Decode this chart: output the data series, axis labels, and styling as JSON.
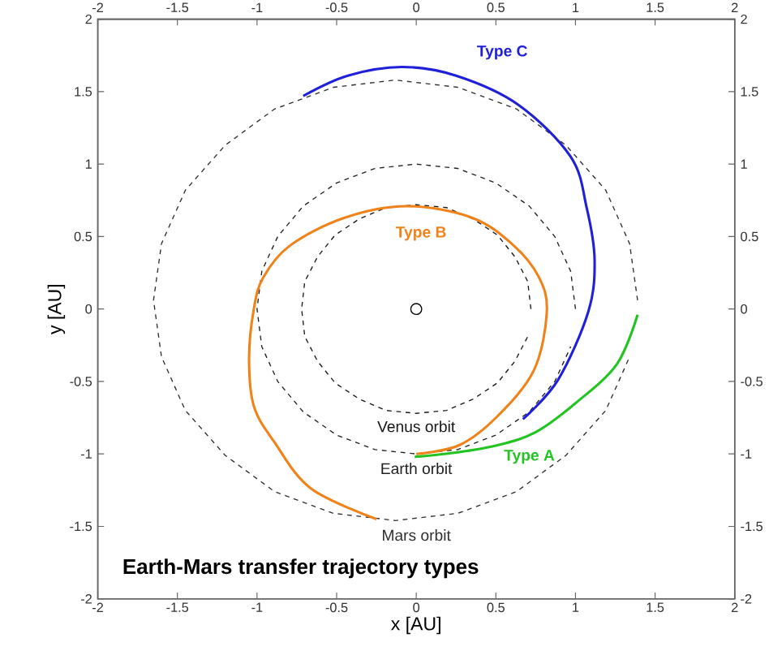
{
  "chart_data": {
    "type": "line",
    "title": "Earth-Mars transfer trajectory types",
    "xlabel": "x [AU]",
    "ylabel": "y [AU]",
    "xlim": [
      -2,
      2
    ],
    "ylim": [
      -2,
      2
    ],
    "xticks": [
      -2,
      -1.5,
      -1,
      -0.5,
      0,
      0.5,
      1,
      1.5,
      2
    ],
    "yticks": [
      -2,
      -1.5,
      -1,
      -0.5,
      0,
      0.5,
      1,
      1.5,
      2
    ],
    "x2lim": [
      -2,
      2
    ],
    "x2ticks": [
      -2,
      -1.5,
      -1,
      -0.5,
      0,
      0.5,
      1,
      1.5,
      2
    ],
    "y2lim": [
      -2,
      2
    ],
    "y2ticks": [
      -2,
      -1.5,
      -1,
      -0.5,
      0,
      0.5,
      1,
      1.5,
      2
    ],
    "legend": false,
    "marker": "none",
    "series": [
      {
        "name": "Venus orbit",
        "color": "#1a1a1a",
        "line_style": "dashed",
        "x": [
          0.72,
          0.7,
          0.62,
          0.51,
          0.36,
          0.19,
          0,
          -0.19,
          -0.36,
          -0.51,
          -0.62,
          -0.7,
          -0.72,
          -0.7,
          -0.62,
          -0.51,
          -0.36,
          -0.19,
          0,
          0.19,
          0.36,
          0.51,
          0.62,
          0.7
        ],
        "values": [
          0,
          0.19,
          0.36,
          0.51,
          0.62,
          0.7,
          0.72,
          0.7,
          0.62,
          0.51,
          0.36,
          0.19,
          0,
          -0.19,
          -0.36,
          -0.51,
          -0.62,
          -0.7,
          -0.72,
          -0.7,
          -0.62,
          -0.51,
          -0.36,
          -0.19
        ]
      },
      {
        "name": "Earth orbit",
        "color": "#222222",
        "line_style": "dashed",
        "x": [
          1,
          0.97,
          0.87,
          0.71,
          0.5,
          0.26,
          0,
          -0.26,
          -0.5,
          -0.71,
          -0.87,
          -0.97,
          -1,
          -0.97,
          -0.87,
          -0.71,
          -0.5,
          -0.26,
          0,
          0.26,
          0.5,
          0.71,
          0.87,
          0.97
        ],
        "values": [
          0,
          0.26,
          0.5,
          0.71,
          0.87,
          0.97,
          1,
          0.97,
          0.87,
          0.71,
          0.5,
          0.26,
          0,
          -0.26,
          -0.5,
          -0.71,
          -0.87,
          -0.97,
          -1,
          -0.97,
          -0.87,
          -0.71,
          -0.5,
          -0.26
        ]
      },
      {
        "name": "Mars orbit",
        "color": "#303030",
        "line_style": "dashed",
        "x": [
          1.39,
          1.34,
          1.19,
          0.94,
          0.63,
          0.26,
          -0.13,
          -0.52,
          -0.89,
          -1.2,
          -1.45,
          -1.6,
          -1.65,
          -1.6,
          -1.45,
          -1.2,
          -0.89,
          -0.52,
          -0.13,
          0.26,
          0.63,
          0.94,
          1.19,
          1.34
        ],
        "values": [
          0.06,
          0.45,
          0.82,
          1.13,
          1.38,
          1.53,
          1.58,
          1.53,
          1.38,
          1.13,
          0.82,
          0.45,
          0.06,
          -0.33,
          -0.7,
          -1.01,
          -1.26,
          -1.41,
          -1.46,
          -1.41,
          -1.26,
          -1.01,
          -0.7,
          -0.33
        ]
      },
      {
        "name": "Type A",
        "color": "#22c422",
        "line_style": "solid",
        "x": [
          -0.01,
          0.25,
          0.51,
          0.75,
          1.0,
          1.26,
          1.39
        ],
        "values": [
          -1.02,
          -0.99,
          -0.94,
          -0.85,
          -0.65,
          -0.38,
          -0.04
        ]
      },
      {
        "name": "Type B",
        "color": "#f0821a",
        "line_style": "solid",
        "x": [
          0,
          0.27,
          0.51,
          0.74,
          0.82,
          0.77,
          0.61,
          0.35,
          -0.06,
          -0.45,
          -0.79,
          -0.96,
          -1.02,
          -1.05,
          -1.02,
          -0.89,
          -0.66,
          -0.25
        ],
        "values": [
          -1.0,
          -0.94,
          -0.74,
          -0.42,
          -0.02,
          0.22,
          0.44,
          0.63,
          0.71,
          0.63,
          0.44,
          0.22,
          0,
          -0.34,
          -0.67,
          -0.92,
          -1.24,
          -1.45
        ]
      },
      {
        "name": "Type C",
        "color": "#2020d8",
        "line_style": "solid",
        "x": [
          0.67,
          0.89,
          1.08,
          1.12,
          1.07,
          0.97,
          0.64,
          0.25,
          -0.09,
          -0.43,
          -0.71
        ],
        "values": [
          -0.76,
          -0.49,
          -0.02,
          0.34,
          0.7,
          1.05,
          1.41,
          1.61,
          1.67,
          1.61,
          1.47
        ]
      },
      {
        "type": "scatter",
        "marker": "circle",
        "color": "#000000",
        "x": [
          0
        ],
        "values": [
          0
        ]
      }
    ]
  }
}
